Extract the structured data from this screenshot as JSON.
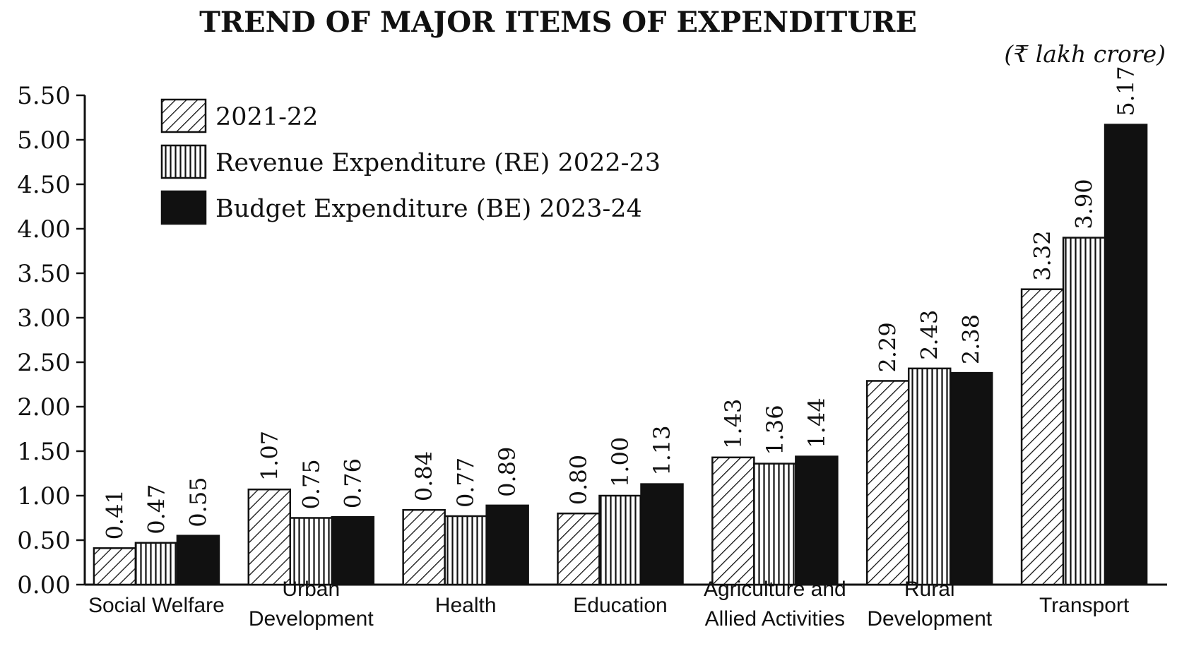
{
  "chart_data": {
    "type": "bar",
    "title": "TREND OF MAJOR ITEMS OF EXPENDITURE",
    "unit": "(₹ lakh crore)",
    "categories": [
      [
        "Social Welfare"
      ],
      [
        "Urban",
        "Development"
      ],
      [
        "Health"
      ],
      [
        "Education"
      ],
      [
        "Agriculture and",
        "Allied Activities"
      ],
      [
        "Rural",
        "Development"
      ],
      [
        "Transport"
      ]
    ],
    "series": [
      {
        "name": "2021-22",
        "pattern": "diagonal",
        "values": [
          0.41,
          1.07,
          0.84,
          0.8,
          1.43,
          2.29,
          3.32
        ],
        "labels": [
          "0.41",
          "1.07",
          "0.84",
          "0.80",
          "1.43",
          "2.29",
          "3.32"
        ]
      },
      {
        "name": "Revenue Expenditure (RE) 2022-23",
        "pattern": "vertical",
        "values": [
          0.47,
          0.75,
          0.77,
          1.0,
          1.36,
          2.43,
          3.9
        ],
        "labels": [
          "0.47",
          "0.75",
          "0.77",
          "1.00",
          "1.36",
          "2.43",
          "3.90"
        ]
      },
      {
        "name": "Budget Expenditure (BE) 2023-24",
        "pattern": "solid",
        "values": [
          0.55,
          0.76,
          0.89,
          1.13,
          1.44,
          2.38,
          5.17
        ],
        "labels": [
          "0.55",
          "0.76",
          "0.89",
          "1.13",
          "1.44",
          "2.38",
          "5.17"
        ]
      }
    ],
    "yticks": [
      "0.00",
      "0.50",
      "1.00",
      "1.50",
      "2.00",
      "2.50",
      "3.00",
      "3.50",
      "4.00",
      "4.50",
      "5.00",
      "5.50"
    ],
    "ylim": [
      0,
      5.5
    ],
    "grid": false,
    "legend_position": "top-left",
    "colors": {
      "ink": "#111111",
      "background": "#ffffff"
    }
  }
}
